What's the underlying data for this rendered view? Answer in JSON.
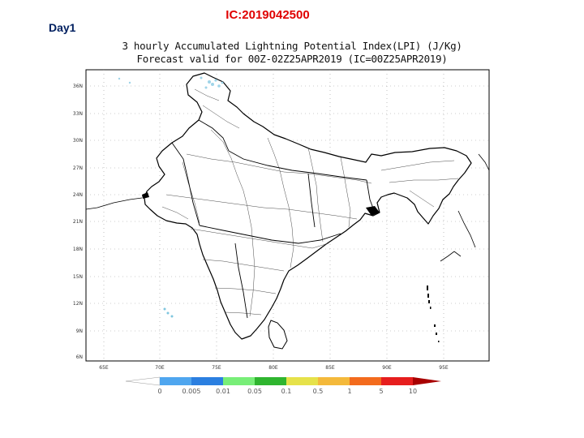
{
  "slide": {
    "day_label": "Day1",
    "ic_label": "IC:2019042500"
  },
  "map": {
    "title_line1": "3 hourly Accumulated Lightning Potential Index(LPI) (J/Kg)",
    "title_line2": "Forecast valid for 00Z-02Z25APR2019 (IC=00Z25APR2019)",
    "lat_ticks": [
      "36N",
      "33N",
      "30N",
      "27N",
      "24N",
      "21N",
      "18N",
      "15N",
      "12N",
      "9N",
      "6N"
    ],
    "lon_ticks": [
      "65E",
      "70E",
      "75E",
      "80E",
      "85E",
      "90E",
      "95E"
    ],
    "land_color": "#ffffff",
    "boundary_color": "#000000",
    "lightning_spots_color": "#9fd4e8"
  },
  "colorbar": {
    "colors": [
      "#4fa6ef",
      "#2b7fe0",
      "#78ee78",
      "#2fb52f",
      "#e6e24a",
      "#f4b93b",
      "#f36b1d",
      "#e61e1e",
      "#a80000"
    ],
    "labels": [
      "0",
      "0.005",
      "0.01",
      "0.05",
      "0.1",
      "0.5",
      "1",
      "5",
      "10"
    ]
  }
}
